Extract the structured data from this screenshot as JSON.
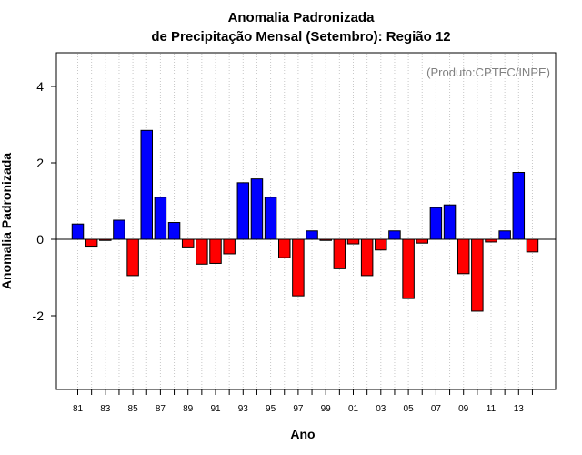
{
  "chart_data": {
    "type": "bar",
    "title_line1": "Anomalia Padronizada",
    "title_line2": "de Precipitação Mensal (Setembro): Região 12",
    "xlabel": "Ano",
    "ylabel": "Anomalia Padronizada",
    "credit": "(Produto:CPTEC/INPE)",
    "ylim": [
      -4,
      5
    ],
    "yticks": [
      -2,
      0,
      2,
      4
    ],
    "ytick_labels": [
      "-2",
      "0",
      "2",
      "4"
    ],
    "categories": [
      "81",
      "82",
      "83",
      "84",
      "85",
      "86",
      "87",
      "88",
      "89",
      "90",
      "91",
      "92",
      "93",
      "94",
      "95",
      "96",
      "97",
      "98",
      "99",
      "00",
      "01",
      "02",
      "03",
      "04",
      "05",
      "06",
      "07",
      "08",
      "09",
      "10",
      "11",
      "12",
      "13",
      "14"
    ],
    "xtick_labels": [
      "81",
      "83",
      "85",
      "87",
      "89",
      "91",
      "93",
      "95",
      "97",
      "99",
      "01",
      "03",
      "05",
      "07",
      "09",
      "11",
      "13"
    ],
    "values": [
      0.4,
      -0.18,
      -0.03,
      0.5,
      -0.95,
      2.85,
      1.1,
      0.44,
      -0.2,
      -0.65,
      -0.63,
      -0.38,
      1.48,
      1.58,
      1.1,
      -0.48,
      -1.48,
      0.22,
      -0.03,
      -0.77,
      -0.12,
      -0.95,
      -0.28,
      0.22,
      -1.55,
      -0.1,
      0.83,
      0.9,
      -0.9,
      -1.88,
      -0.07,
      0.22,
      1.75,
      -0.33
    ],
    "positive_color": "#0000FF",
    "negative_color": "#FF0000",
    "grid": true
  }
}
